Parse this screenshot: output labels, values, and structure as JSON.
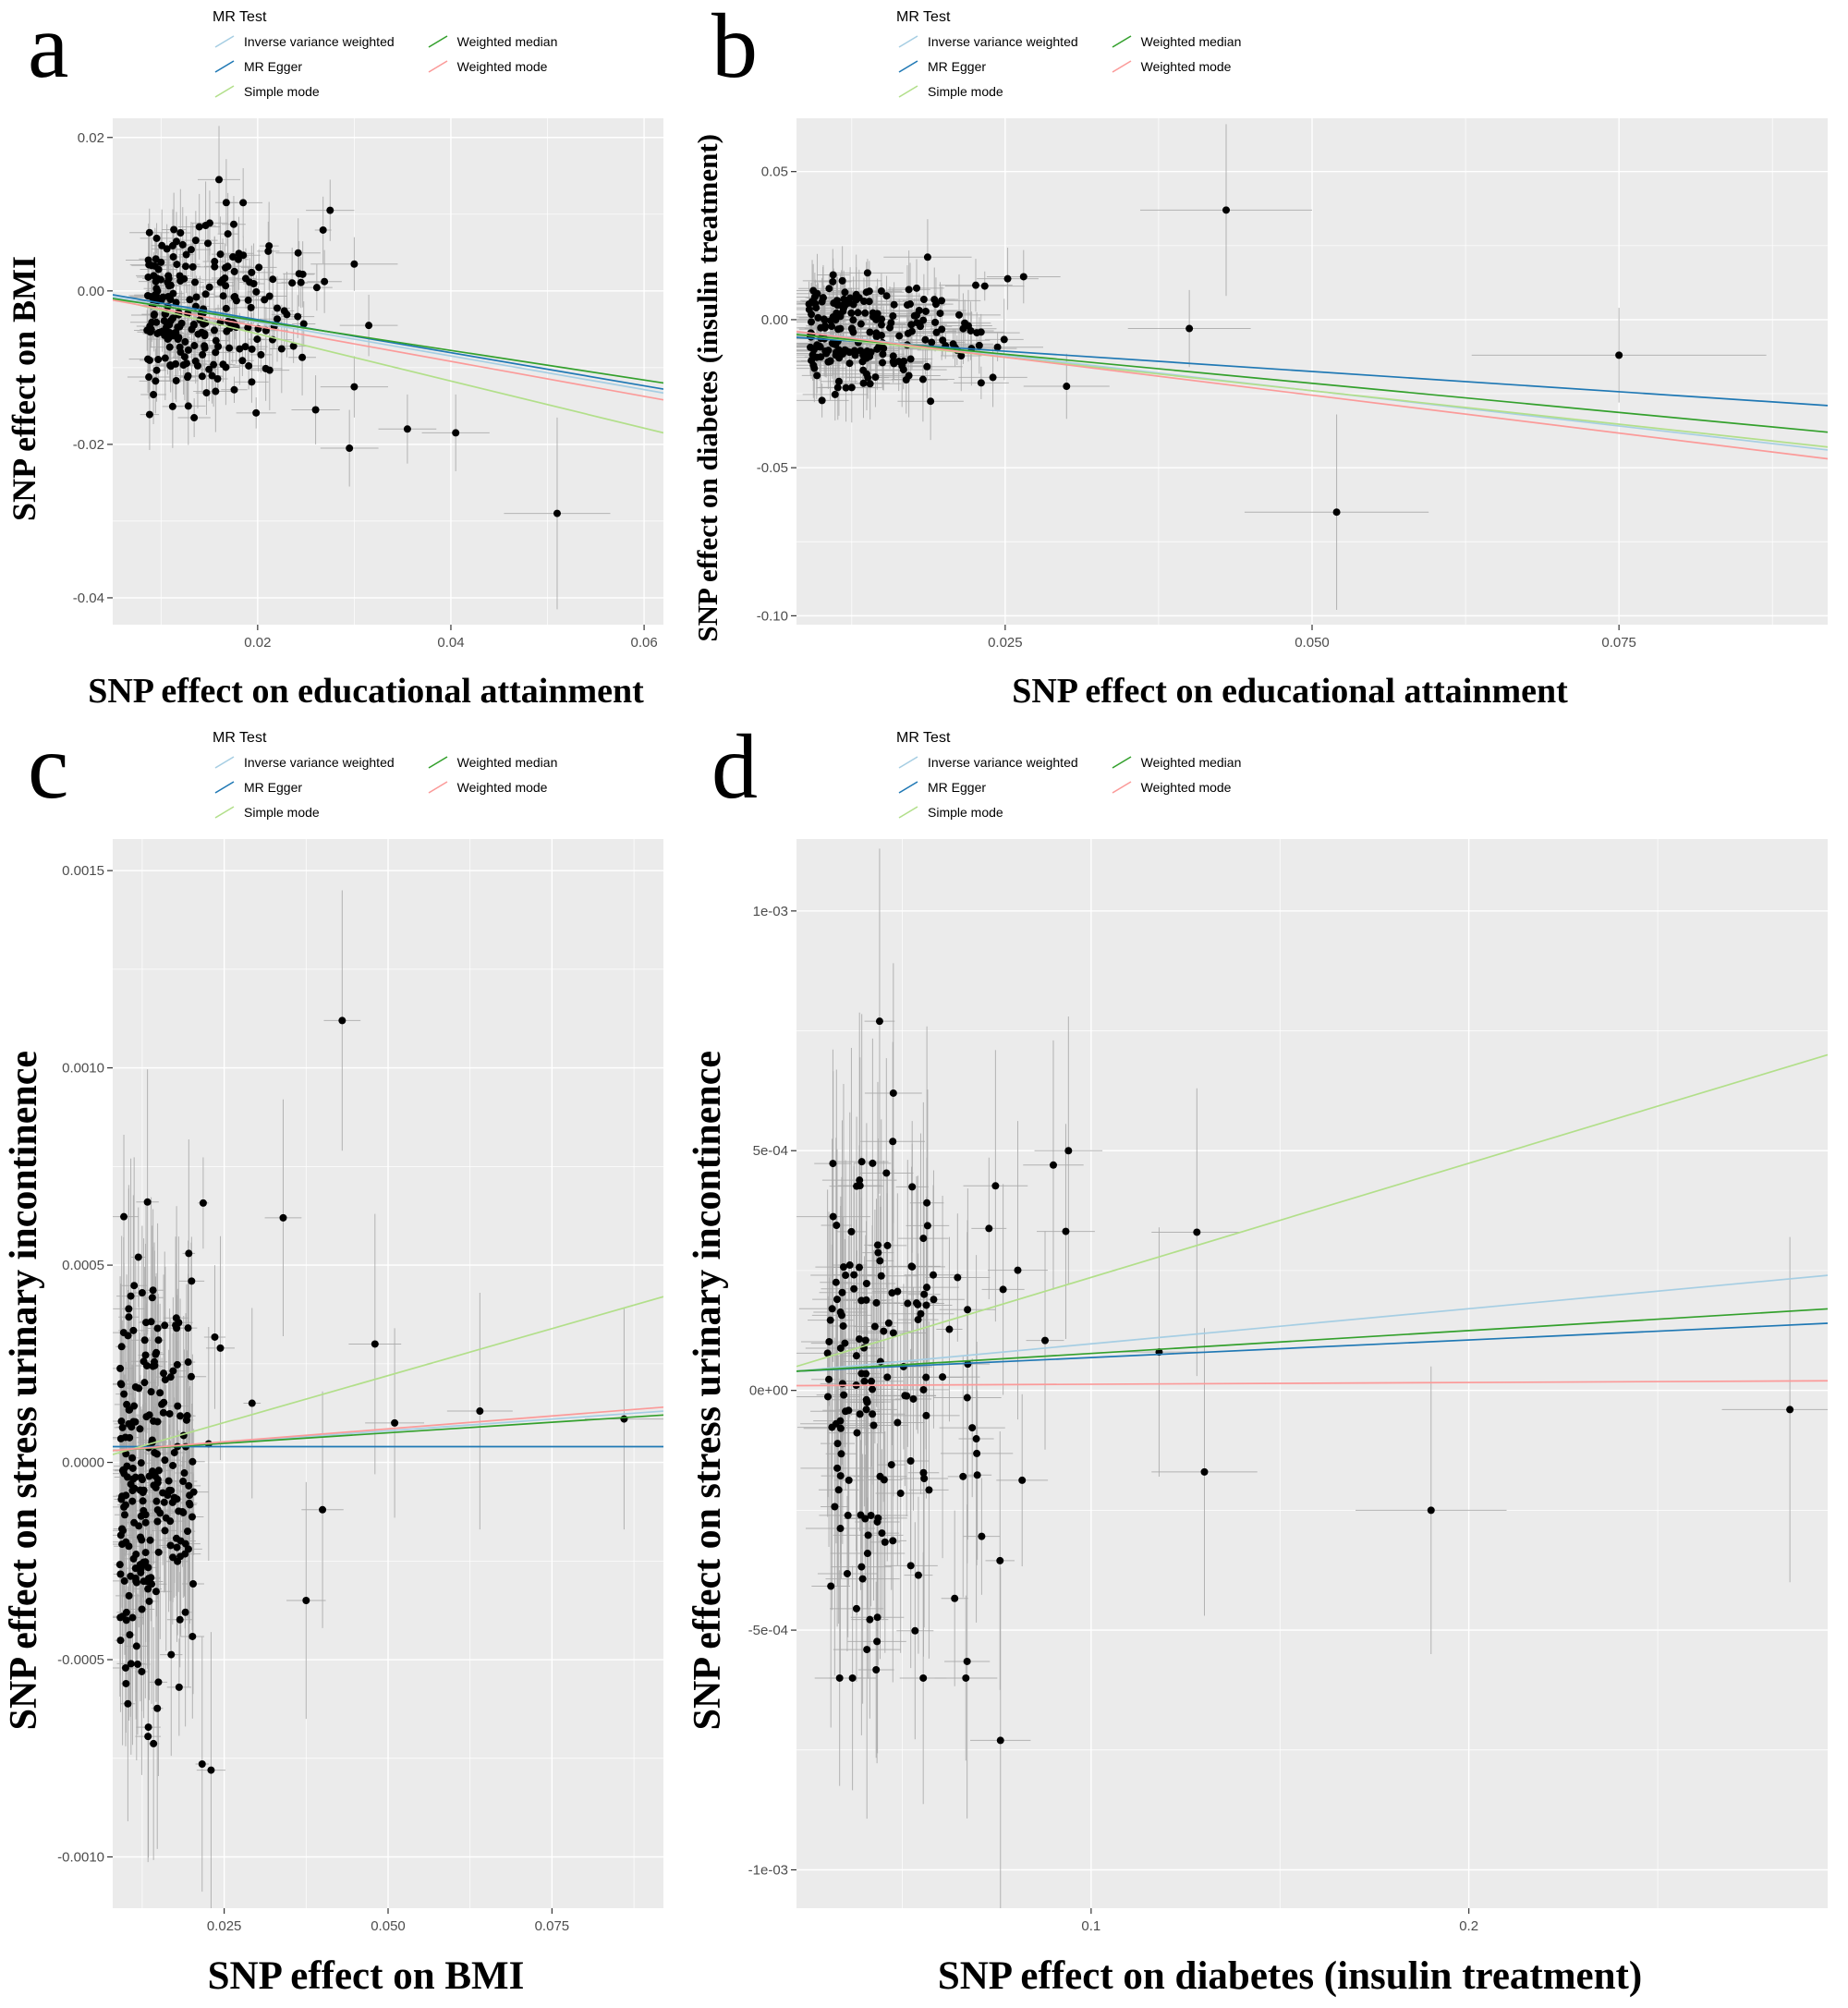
{
  "legend": {
    "title": "MR Test",
    "entries": [
      {
        "label": "Inverse variance weighted",
        "color": "#a6cee3"
      },
      {
        "label": "MR Egger",
        "color": "#1f78b4"
      },
      {
        "label": "Simple mode",
        "color": "#b2df8a"
      },
      {
        "label": "Weighted median",
        "color": "#33a02c"
      },
      {
        "label": "Weighted mode",
        "color": "#fb9a99"
      }
    ]
  },
  "style": {
    "panel_bg": "#ebebeb",
    "grid_major": "#ffffff",
    "grid_minor": "#ffffff",
    "point_color": "#000000",
    "errorbar_color": "#a8a8a8",
    "tick_label_color": "#4d4d4d"
  },
  "chart_data": [
    {
      "id": "a",
      "type": "scatter",
      "xlabel": "SNP effect on educational attainment",
      "ylabel": "SNP effect on BMI",
      "xlim": [
        0.005,
        0.062
      ],
      "ylim": [
        -0.0435,
        0.0225
      ],
      "xticks": {
        "values": [
          0.02,
          0.04,
          0.06
        ],
        "labels": [
          "0.02",
          "0.04",
          "0.06"
        ]
      },
      "yticks": {
        "values": [
          -0.04,
          -0.02,
          0,
          0.02
        ],
        "labels": [
          "-0.04",
          "-0.02",
          "0.00",
          "0.02"
        ]
      },
      "lines": [
        {
          "method": "Inverse variance weighted",
          "color": "#a6cee3",
          "y0": -0.0008,
          "y1": -0.0133
        },
        {
          "method": "MR Egger",
          "color": "#1f78b4",
          "y0": -0.0005,
          "y1": -0.0128
        },
        {
          "method": "Simple mode",
          "color": "#b2df8a",
          "y0": -0.001,
          "y1": -0.0185
        },
        {
          "method": "Weighted median",
          "color": "#33a02c",
          "y0": -0.001,
          "y1": -0.012
        },
        {
          "method": "Weighted mode",
          "color": "#fb9a99",
          "y0": -0.0012,
          "y1": -0.0142
        }
      ],
      "cluster": {
        "seed": 7,
        "n": 235,
        "x0": 0.0085,
        "x_sd": 0.0075,
        "x_clip": 0.034,
        "y_mean": -0.0028,
        "y_sd": 0.0055,
        "y_clip": [
          -0.0205,
          0.0148
        ],
        "xerr": 0.0022,
        "yerr": 0.0048
      },
      "outliers": [
        {
          "x": 0.051,
          "y": -0.029,
          "xerr": 0.0055,
          "yerr": 0.0125
        },
        {
          "x": 0.0405,
          "y": -0.0185,
          "xerr": 0.0035,
          "yerr": 0.005
        },
        {
          "x": 0.0355,
          "y": -0.018,
          "xerr": 0.003,
          "yerr": 0.0045
        },
        {
          "x": 0.0295,
          "y": -0.0205,
          "xerr": 0.003,
          "yerr": 0.005
        },
        {
          "x": 0.03,
          "y": -0.0125,
          "xerr": 0.0035,
          "yerr": 0.004
        },
        {
          "x": 0.016,
          "y": 0.0145,
          "xerr": 0.0022,
          "yerr": 0.007
        },
        {
          "x": 0.0185,
          "y": 0.0115,
          "xerr": 0.002,
          "yerr": 0.0045
        },
        {
          "x": 0.0275,
          "y": 0.0105,
          "xerr": 0.0025,
          "yerr": 0.004
        },
        {
          "x": 0.03,
          "y": 0.0035,
          "xerr": 0.0045,
          "yerr": 0.0035
        },
        {
          "x": 0.0315,
          "y": -0.0045,
          "xerr": 0.003,
          "yerr": 0.004
        },
        {
          "x": 0.026,
          "y": -0.0155,
          "xerr": 0.0025,
          "yerr": 0.0045
        }
      ]
    },
    {
      "id": "b",
      "type": "scatter",
      "xlabel": "SNP effect on educational attainment",
      "ylabel": "SNP effect on diabetes (insulin treatment)",
      "xlim": [
        0.008,
        0.092
      ],
      "ylim": [
        -0.103,
        0.068
      ],
      "xticks": {
        "values": [
          0.025,
          0.05,
          0.075
        ],
        "labels": [
          "0.025",
          "0.050",
          "0.075"
        ]
      },
      "yticks": {
        "values": [
          -0.1,
          -0.05,
          0,
          0.05
        ],
        "labels": [
          "-0.10",
          "-0.05",
          "0.00",
          "0.05"
        ]
      },
      "lines": [
        {
          "method": "Inverse variance weighted",
          "color": "#a6cee3",
          "y0": -0.004,
          "y1": -0.044
        },
        {
          "method": "MR Egger",
          "color": "#1f78b4",
          "y0": -0.006,
          "y1": -0.029
        },
        {
          "method": "Simple mode",
          "color": "#b2df8a",
          "y0": -0.005,
          "y1": -0.043
        },
        {
          "method": "Weighted median",
          "color": "#33a02c",
          "y0": -0.005,
          "y1": -0.038
        },
        {
          "method": "Weighted mode",
          "color": "#fb9a99",
          "y0": -0.004,
          "y1": -0.047
        }
      ],
      "cluster": {
        "seed": 13,
        "n": 205,
        "x0": 0.009,
        "x_sd": 0.006,
        "x_clip": 0.031,
        "y_mean": -0.004,
        "y_sd": 0.009,
        "y_clip": [
          -0.031,
          0.0295
        ],
        "xerr": 0.0035,
        "yerr": 0.012
      },
      "outliers": [
        {
          "x": 0.043,
          "y": 0.037,
          "xerr": 0.007,
          "yerr": 0.029
        },
        {
          "x": 0.052,
          "y": -0.065,
          "xerr": 0.0075,
          "yerr": 0.033
        },
        {
          "x": 0.075,
          "y": -0.012,
          "xerr": 0.012,
          "yerr": 0.016
        },
        {
          "x": 0.04,
          "y": -0.003,
          "xerr": 0.005,
          "yerr": 0.013
        },
        {
          "x": 0.03,
          "y": -0.0225,
          "xerr": 0.0035,
          "yerr": 0.011
        },
        {
          "x": 0.0265,
          "y": 0.0145,
          "xerr": 0.003,
          "yerr": 0.009
        },
        {
          "x": 0.024,
          "y": -0.0195,
          "xerr": 0.0028,
          "yerr": 0.01
        }
      ]
    },
    {
      "id": "c",
      "type": "scatter",
      "xlabel": "SNP effect on BMI",
      "ylabel": "SNP effect on stress urinary incontinence",
      "xlim": [
        0.008,
        0.092
      ],
      "ylim": [
        -0.00113,
        0.00158
      ],
      "xticks": {
        "values": [
          0.025,
          0.05,
          0.075
        ],
        "labels": [
          "0.025",
          "0.050",
          "0.075"
        ]
      },
      "yticks": {
        "values": [
          -0.001,
          -0.0005,
          0,
          0.0005,
          0.001,
          0.0015
        ],
        "labels": [
          "-0.0010",
          "-0.0005",
          "0.0000",
          "0.0005",
          "0.0010",
          "0.0015"
        ]
      },
      "lines": [
        {
          "method": "Inverse variance weighted",
          "color": "#a6cee3",
          "y0": 3e-05,
          "y1": 0.00013
        },
        {
          "method": "MR Egger",
          "color": "#1f78b4",
          "y0": 4e-05,
          "y1": 4e-05
        },
        {
          "method": "Simple mode",
          "color": "#b2df8a",
          "y0": 2e-05,
          "y1": 0.00042
        },
        {
          "method": "Weighted median",
          "color": "#33a02c",
          "y0": 3e-05,
          "y1": 0.00012
        },
        {
          "method": "Weighted mode",
          "color": "#fb9a99",
          "y0": 3e-05,
          "y1": 0.00014
        }
      ],
      "cluster": {
        "seed": 21,
        "n": 240,
        "x0": 0.009,
        "x_sd": 0.0065,
        "x_clip": 0.036,
        "y_mean": -4e-05,
        "y_sd": 0.00028,
        "y_clip": [
          -0.00082,
          0.00066
        ],
        "xerr": 0.0022,
        "yerr": 0.0003
      },
      "outliers": [
        {
          "x": 0.043,
          "y": 0.00112,
          "xerr": 0.0028,
          "yerr": 0.00033
        },
        {
          "x": 0.048,
          "y": 0.0003,
          "xerr": 0.004,
          "yerr": 0.00033
        },
        {
          "x": 0.064,
          "y": 0.00013,
          "xerr": 0.005,
          "yerr": 0.0003
        },
        {
          "x": 0.086,
          "y": 0.00011,
          "xerr": 0.006,
          "yerr": 0.00028
        },
        {
          "x": 0.051,
          "y": 0.0001,
          "xerr": 0.0045,
          "yerr": 0.00024
        },
        {
          "x": 0.04,
          "y": -0.00012,
          "xerr": 0.0032,
          "yerr": 0.0003
        },
        {
          "x": 0.0375,
          "y": -0.00035,
          "xerr": 0.003,
          "yerr": 0.0003
        },
        {
          "x": 0.034,
          "y": 0.00062,
          "xerr": 0.0028,
          "yerr": 0.0003
        },
        {
          "x": 0.023,
          "y": -0.00078,
          "xerr": 0.0022,
          "yerr": 0.00035
        }
      ]
    },
    {
      "id": "d",
      "type": "scatter",
      "xlabel": "SNP effect on diabetes (insulin treatment)",
      "ylabel": "SNP effect on stress urinary incontinence",
      "xlim": [
        0.022,
        0.295
      ],
      "ylim": [
        -0.00108,
        0.00115
      ],
      "xticks": {
        "values": [
          0.1,
          0.2
        ],
        "labels": [
          "0.1",
          "0.2"
        ]
      },
      "yticks": {
        "values": [
          -0.001,
          -0.0005,
          0,
          0.0005,
          0.001
        ],
        "labels": [
          "-1e-03",
          "-5e-04",
          "0e+00",
          "5e-04",
          "1e-03"
        ]
      },
      "lines": [
        {
          "method": "Inverse variance weighted",
          "color": "#a6cee3",
          "y0": 4e-05,
          "y1": 0.00024
        },
        {
          "method": "MR Egger",
          "color": "#1f78b4",
          "y0": 4e-05,
          "y1": 0.00014
        },
        {
          "method": "Simple mode",
          "color": "#b2df8a",
          "y0": 5e-05,
          "y1": 0.0007
        },
        {
          "method": "Weighted median",
          "color": "#33a02c",
          "y0": 4e-05,
          "y1": 0.00017
        },
        {
          "method": "Weighted mode",
          "color": "#fb9a99",
          "y0": 1e-05,
          "y1": 2e-05
        }
      ],
      "cluster": {
        "seed": 29,
        "n": 165,
        "x0": 0.03,
        "x_sd": 0.022,
        "x_clip": 0.115,
        "y_mean": -2e-05,
        "y_sd": 0.00028,
        "y_clip": [
          -0.0006,
          0.00062
        ],
        "xerr": 0.009,
        "yerr": 0.00032
      },
      "outliers": [
        {
          "x": 0.19,
          "y": -0.00025,
          "xerr": 0.02,
          "yerr": 0.0003
        },
        {
          "x": 0.285,
          "y": -4e-05,
          "xerr": 0.018,
          "yerr": 0.00036
        },
        {
          "x": 0.13,
          "y": -0.00017,
          "xerr": 0.014,
          "yerr": 0.0003
        },
        {
          "x": 0.118,
          "y": 8e-05,
          "xerr": 0.012,
          "yerr": 0.00026
        },
        {
          "x": 0.128,
          "y": 0.00033,
          "xerr": 0.012,
          "yerr": 0.0003
        },
        {
          "x": 0.076,
          "y": -0.00073,
          "xerr": 0.008,
          "yerr": 0.00036
        },
        {
          "x": 0.044,
          "y": 0.00077,
          "xerr": 0.004,
          "yerr": 0.00036
        },
        {
          "x": 0.094,
          "y": 0.0005,
          "xerr": 0.009,
          "yerr": 0.00028
        },
        {
          "x": 0.09,
          "y": 0.00047,
          "xerr": 0.008,
          "yerr": 0.00026
        }
      ]
    }
  ]
}
